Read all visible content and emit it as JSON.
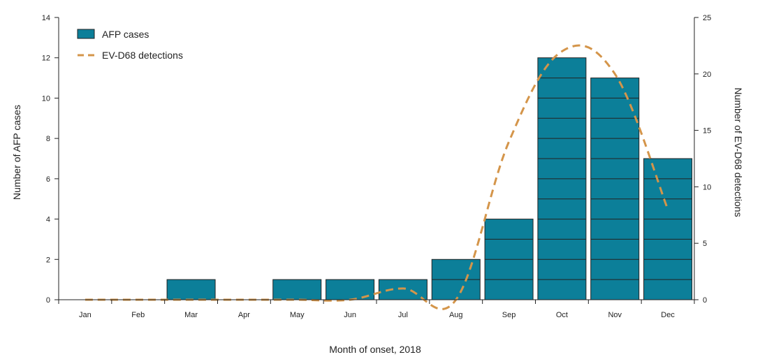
{
  "chart_data": {
    "type": "bar",
    "title": "",
    "xlabel": "Month of onset, 2018",
    "ylabel": "Number of AFP cases",
    "y2label": "Number of EV-D68 detections",
    "categories": [
      "Jan",
      "Feb",
      "Mar",
      "Apr",
      "May",
      "Jun",
      "Jul",
      "Aug",
      "Sep",
      "Oct",
      "Nov",
      "Dec"
    ],
    "ylim": [
      0,
      14
    ],
    "y2lim": [
      0,
      25
    ],
    "yticks": [
      "0",
      "2",
      "4",
      "6",
      "8",
      "10",
      "12",
      "14"
    ],
    "y2ticks": [
      "0",
      "5",
      "10",
      "15",
      "20",
      "25"
    ],
    "series": [
      {
        "name": "AFP cases",
        "type": "bar",
        "axis": "left",
        "color": "#0c7f99",
        "values": [
          0,
          0,
          1,
          0,
          1,
          1,
          1,
          2,
          4,
          12,
          11,
          7
        ]
      },
      {
        "name": "EV-D68 detections",
        "type": "line",
        "axis": "right",
        "style": "dashed",
        "color": "#d4954a",
        "values": [
          0,
          0,
          0,
          0,
          0,
          0,
          1,
          0,
          14,
          22,
          20,
          8
        ]
      }
    ],
    "legend": "top-left",
    "grid": false
  }
}
